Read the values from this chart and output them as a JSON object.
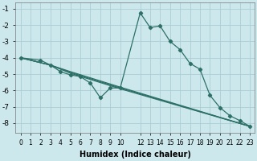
{
  "xlabel": "Humidex (Indice chaleur)",
  "bg_color": "#cce8ec",
  "line_color": "#2d7068",
  "grid_color": "#aacdd4",
  "xlim": [
    -0.5,
    23.5
  ],
  "ylim": [
    -8.6,
    -0.6
  ],
  "yticks": [
    -1,
    -2,
    -3,
    -4,
    -5,
    -6,
    -7,
    -8
  ],
  "xticks": [
    0,
    1,
    2,
    3,
    4,
    5,
    6,
    7,
    8,
    9,
    10,
    12,
    13,
    14,
    15,
    16,
    17,
    18,
    19,
    20,
    21,
    22,
    23
  ],
  "lines": [
    {
      "x": [
        0,
        2,
        3,
        4,
        5,
        6,
        7,
        8,
        9,
        10,
        12,
        13,
        14,
        15,
        16,
        17,
        18,
        19,
        20,
        21,
        22,
        23
      ],
      "y": [
        -4.0,
        -4.15,
        -4.45,
        -4.85,
        -5.05,
        -5.15,
        -5.55,
        -6.45,
        -5.85,
        -5.85,
        -1.25,
        -2.15,
        -2.05,
        -3.0,
        -3.5,
        -4.35,
        -4.7,
        -6.3,
        -7.05,
        -7.55,
        -7.85,
        -8.2
      ]
    },
    {
      "x": [
        0,
        3,
        5,
        10,
        23
      ],
      "y": [
        -4.0,
        -4.45,
        -4.85,
        -5.8,
        -8.2
      ]
    },
    {
      "x": [
        0,
        3,
        5,
        10,
        23
      ],
      "y": [
        -4.0,
        -4.45,
        -4.9,
        -5.85,
        -8.2
      ]
    },
    {
      "x": [
        0,
        3,
        5,
        10,
        23
      ],
      "y": [
        -4.0,
        -4.45,
        -4.95,
        -5.9,
        -8.2
      ]
    }
  ]
}
